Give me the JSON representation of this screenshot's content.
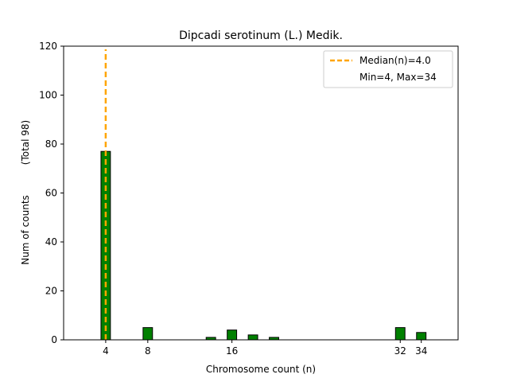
{
  "chart_data": {
    "type": "bar",
    "title": "Dipcadi serotinum (L.) Medik.",
    "xlabel": "Chromosome count (n)",
    "ylabel": "Num of counts",
    "ylabel_secondary": "(Total 98)",
    "xlim": [
      0,
      37.5
    ],
    "ylim": [
      0,
      120
    ],
    "xticks": [
      4,
      8,
      16,
      32,
      34
    ],
    "yticks": [
      0,
      20,
      40,
      60,
      80,
      100,
      120
    ],
    "bar_width": 0.9,
    "bar_color": "#008000",
    "bar_edge_color": "#000000",
    "bars": [
      {
        "x": 4,
        "y": 77
      },
      {
        "x": 8,
        "y": 5
      },
      {
        "x": 14,
        "y": 1
      },
      {
        "x": 16,
        "y": 4
      },
      {
        "x": 18,
        "y": 2
      },
      {
        "x": 20,
        "y": 1
      },
      {
        "x": 32,
        "y": 5
      },
      {
        "x": 34,
        "y": 3
      }
    ],
    "median": {
      "x": 4,
      "color": "#FFA500",
      "label": "Median(n)=4.0"
    },
    "legend": {
      "position": "top-right",
      "entries": [
        "Median(n)=4.0",
        "Min=4, Max=34"
      ]
    },
    "grid": false
  }
}
